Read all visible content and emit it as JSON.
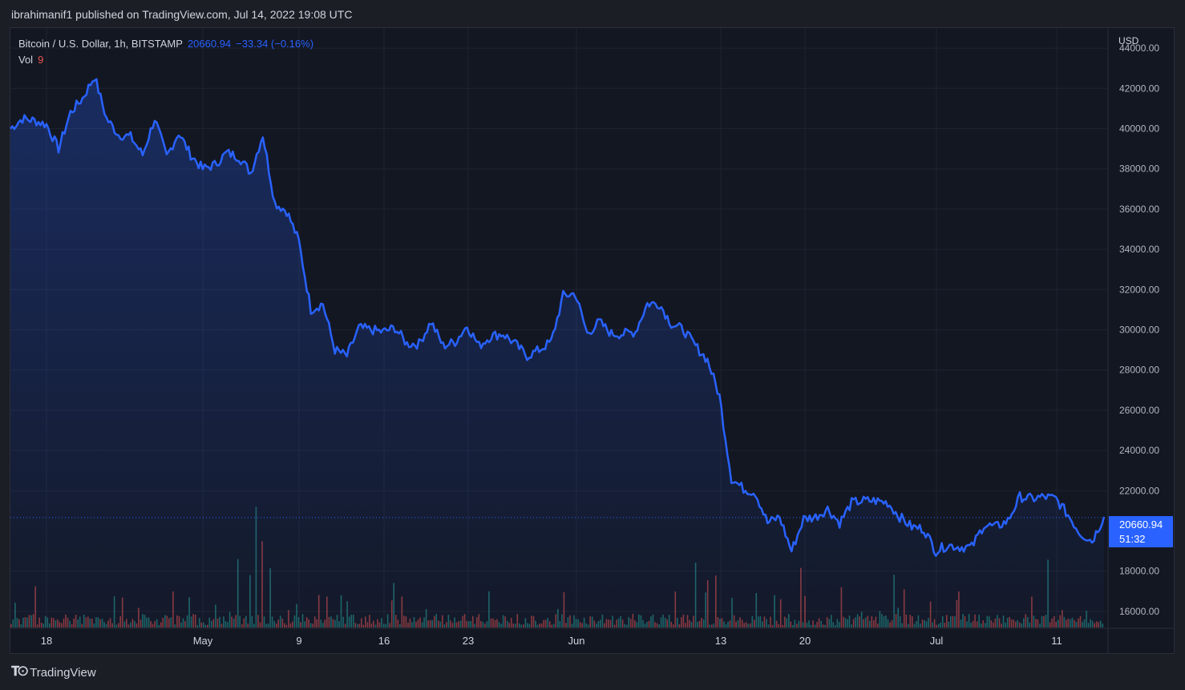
{
  "header": {
    "published_text": "ibrahimanif1 published on TradingView.com, Jul 14, 2022 19:08 UTC"
  },
  "legend": {
    "symbol": "Bitcoin / U.S. Dollar, 1h, BITSTAMP",
    "last_price": "20660.94",
    "change": "−33.34 (−0.16%)",
    "vol_label": "Vol",
    "vol_value": "9"
  },
  "price_scale": {
    "currency": "USD",
    "ticks": [
      "44000.00",
      "42000.00",
      "40000.00",
      "38000.00",
      "36000.00",
      "34000.00",
      "32000.00",
      "30000.00",
      "28000.00",
      "26000.00",
      "24000.00",
      "22000.00",
      "18000.00",
      "16000.00"
    ],
    "current_price_label": "20660.94",
    "countdown": "51:32"
  },
  "time_scale": {
    "labels": [
      "18",
      "May",
      "9",
      "16",
      "23",
      "Jun",
      "13",
      "20",
      "Jul",
      "11"
    ]
  },
  "footer": {
    "brand": "TradingView"
  },
  "colors": {
    "line": "#2962ff",
    "area_top": "#2962ff",
    "vol_up": "#26a69a",
    "vol_down": "#ef5350",
    "grid": "#1f2330",
    "text": "#b2b5be",
    "background": "#131722"
  },
  "chart_data": {
    "type": "area",
    "series": [
      {
        "x": [
          "Apr 14",
          "Apr 15",
          "Apr 16",
          "Apr 17",
          "Apr 18",
          "Apr 19",
          "Apr 20",
          "Apr 21",
          "Apr 22",
          "Apr 23",
          "Apr 24",
          "Apr 25",
          "Apr 26",
          "Apr 27",
          "Apr 28",
          "Apr 29",
          "Apr 30",
          "May 1",
          "May 2",
          "May 3",
          "May 4",
          "May 5",
          "May 6",
          "May 7",
          "May 8",
          "May 9",
          "May 10",
          "May 11",
          "May 12",
          "May 13",
          "May 14",
          "May 15",
          "May 16",
          "May 17",
          "May 18",
          "May 19",
          "May 20",
          "May 21",
          "May 22",
          "May 23",
          "May 24",
          "May 25",
          "May 26",
          "May 27",
          "May 28",
          "May 29",
          "May 30",
          "May 31",
          "Jun 1",
          "Jun 2",
          "Jun 3",
          "Jun 4",
          "Jun 5",
          "Jun 6",
          "Jun 7",
          "Jun 8",
          "Jun 9",
          "Jun 10",
          "Jun 11",
          "Jun 12",
          "Jun 13",
          "Jun 14",
          "Jun 15",
          "Jun 16",
          "Jun 17",
          "Jun 18",
          "Jun 19",
          "Jun 20",
          "Jun 21",
          "Jun 22",
          "Jun 23",
          "Jun 24",
          "Jun 25",
          "Jun 26",
          "Jun 27",
          "Jun 28",
          "Jun 29",
          "Jun 30",
          "Jul 1",
          "Jul 2",
          "Jul 3",
          "Jul 4",
          "Jul 5",
          "Jul 6",
          "Jul 7",
          "Jul 8",
          "Jul 9",
          "Jul 10",
          "Jul 11",
          "Jul 12",
          "Jul 13",
          "Jul 14"
        ],
        "values": [
          40000,
          40500,
          40400,
          40200,
          39000,
          40800,
          41500,
          42600,
          40500,
          39700,
          39600,
          38700,
          40500,
          38600,
          39800,
          38700,
          38000,
          38200,
          38800,
          38600,
          37800,
          39700,
          36300,
          35900,
          34400,
          31000,
          31300,
          29000,
          28700,
          30100,
          30000,
          29900,
          30100,
          29300,
          29300,
          30400,
          29200,
          29400,
          30200,
          29200,
          29700,
          29800,
          29300,
          28700,
          29000,
          29400,
          31700,
          31800,
          29800,
          30400,
          29800,
          29800,
          29900,
          31300,
          31300,
          30300,
          30000,
          29200,
          28500,
          26700,
          22600,
          22100,
          21900,
          20400,
          20700,
          19000,
          20600,
          20700,
          21100,
          20400,
          21400,
          21500,
          21500,
          21400,
          20700,
          20200,
          20100,
          19000,
          19300,
          19200,
          19200,
          20300,
          20200,
          20500,
          21700,
          21600,
          21700,
          21600,
          20800,
          19900,
          19500,
          20700
        ]
      }
    ],
    "ylim": [
      15200,
      45000
    ],
    "ylabel": "USD",
    "last_value": 20660.94
  }
}
